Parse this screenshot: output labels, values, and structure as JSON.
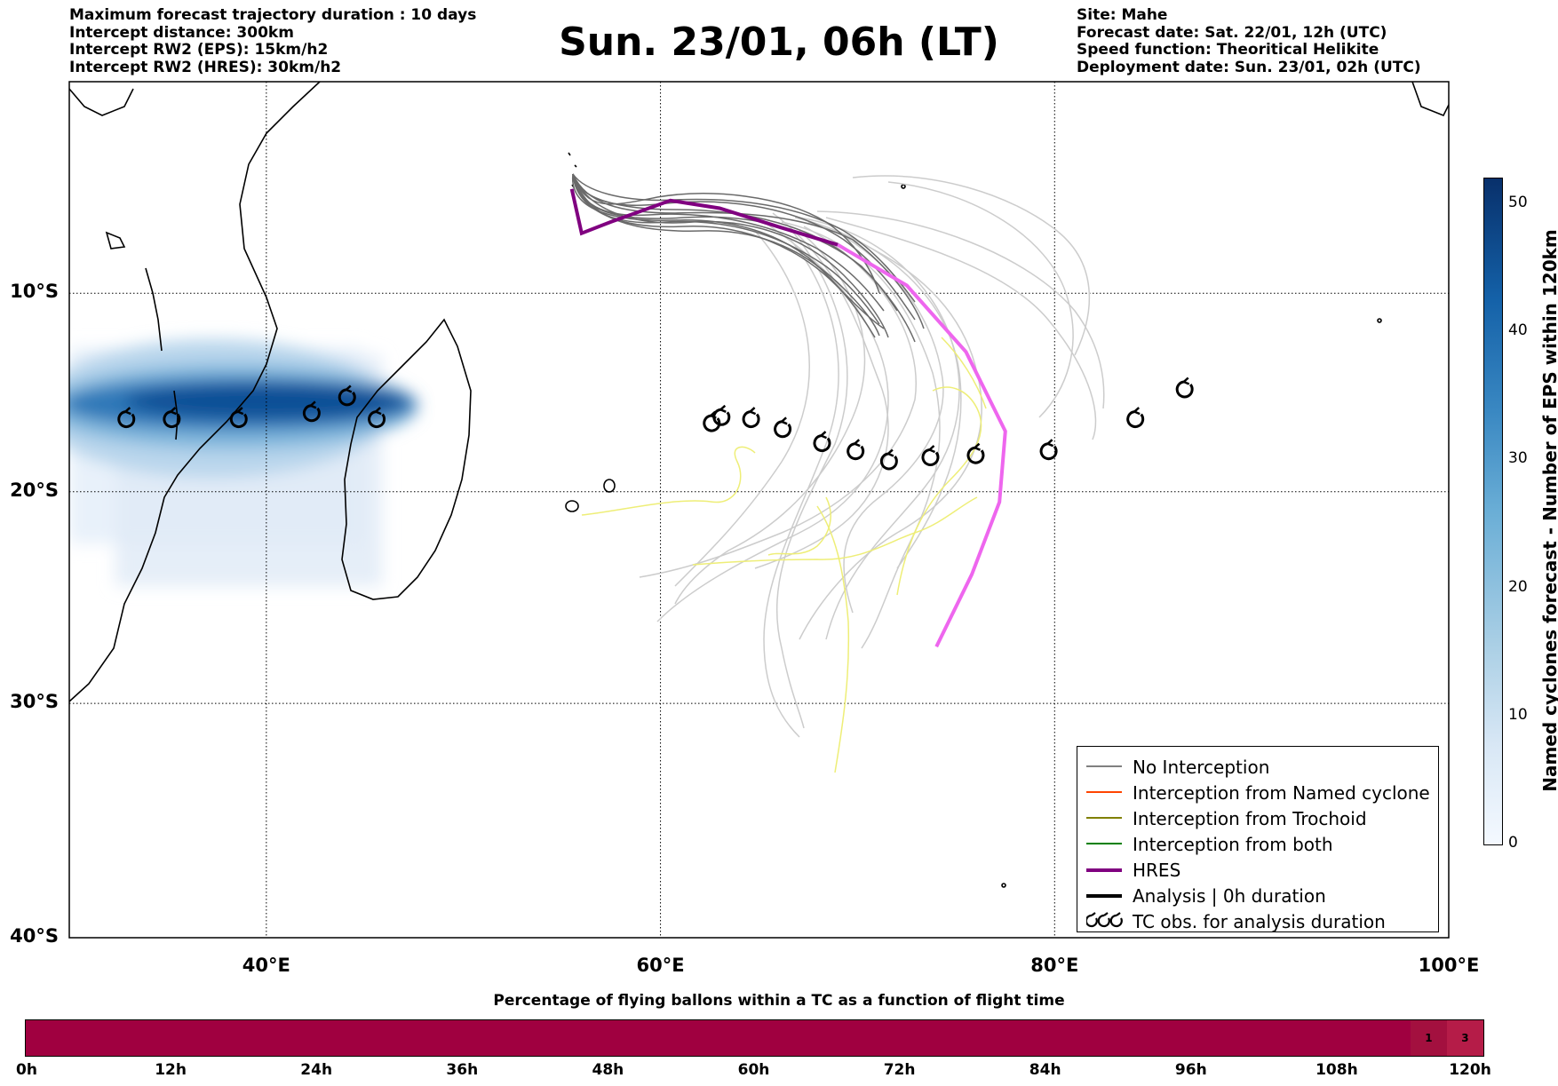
{
  "header_left": [
    "Maximum forecast trajectory duration : 10 days",
    "Intercept distance: 300km",
    "Intercept RW2 (EPS):  15km/h2",
    "Intercept RW2 (HRES): 30km/h2"
  ],
  "header_right": [
    "Site: Mahe",
    "Forecast date: Sat. 22/01, 12h (UTC)",
    "Speed function: Theoritical Helikite",
    "Deployment date: Sun. 23/01, 02h (UTC)"
  ],
  "title": "Sun. 23/01, 06h (LT)",
  "map": {
    "lon_labels": [
      "40°E",
      "60°E",
      "80°E",
      "100°E"
    ],
    "lat_labels": [
      "10°S",
      "20°S",
      "30°S",
      "40°S"
    ],
    "lon_values": [
      40,
      60,
      80,
      100
    ],
    "lat_values": [
      -10,
      -20,
      -30,
      -40
    ],
    "extent": {
      "lon_min": 30,
      "lon_max": 100,
      "lat_min": -40,
      "lat_max": 1
    },
    "gridlines": true
  },
  "legend": {
    "items": [
      {
        "label": "No Interception",
        "color": "#808080",
        "style": "thin"
      },
      {
        "label": "Interception from Named cyclone",
        "color": "#ff4500",
        "style": "thin"
      },
      {
        "label": "Interception from Trochoid",
        "color": "#808000",
        "style": "thin"
      },
      {
        "label": "Interception from both",
        "color": "#008000",
        "style": "thin"
      },
      {
        "label": "HRES",
        "color": "#800080",
        "style": "thick"
      },
      {
        "label": "Analysis | 0h duration",
        "color": "#000000",
        "style": "thick"
      },
      {
        "label": "TC obs. for analysis duration",
        "color": "#000000",
        "style": "symbol"
      }
    ],
    "position": "bottom-right"
  },
  "colorbar": {
    "label": "Named cyclones forecast - Number of EPS within 120km",
    "ticks": [
      "0",
      "10",
      "20",
      "30",
      "40",
      "50"
    ],
    "tick_values": [
      0,
      10,
      20,
      30,
      40,
      50
    ],
    "max": 52
  },
  "percentage_bar": {
    "title": "Percentage of flying ballons within a TC as a function of flight time",
    "tick_labels": [
      "0h",
      "12h",
      "24h",
      "36h",
      "48h",
      "60h",
      "72h",
      "84h",
      "96h",
      "108h",
      "120h"
    ],
    "tick_values": [
      0,
      12,
      24,
      36,
      48,
      60,
      72,
      84,
      96,
      108,
      120
    ],
    "cells": [
      {
        "start_h": 0,
        "end_h": 114,
        "value": "",
        "color": "#a00040"
      },
      {
        "start_h": 114,
        "end_h": 117,
        "value": "1",
        "color": "#a3103f"
      },
      {
        "start_h": 117,
        "end_h": 120,
        "value": "3",
        "color": "#b51c48"
      }
    ]
  },
  "colors": {
    "hres": "#800080",
    "hres_late": "#ee66ee",
    "no_interception": "#6a6a6a",
    "no_interception_late": "#cccccc",
    "trochoid_late": "#eeee77",
    "density_dark": "#08306b",
    "percentage_fill": "#a00040"
  },
  "tc_observations": [
    {
      "lon": 32.9,
      "lat": -16.4
    },
    {
      "lon": 35.2,
      "lat": -16.4
    },
    {
      "lon": 38.6,
      "lat": -16.4
    },
    {
      "lon": 42.3,
      "lat": -16.1
    },
    {
      "lon": 44.1,
      "lat": -15.3
    },
    {
      "lon": 45.6,
      "lat": -16.4
    },
    {
      "lon": 62.6,
      "lat": -16.6
    },
    {
      "lon": 63.1,
      "lat": -16.3
    },
    {
      "lon": 64.6,
      "lat": -16.4
    },
    {
      "lon": 66.2,
      "lat": -16.9
    },
    {
      "lon": 68.2,
      "lat": -17.6
    },
    {
      "lon": 69.9,
      "lat": -18.0
    },
    {
      "lon": 71.6,
      "lat": -18.5
    },
    {
      "lon": 73.7,
      "lat": -18.3
    },
    {
      "lon": 76.0,
      "lat": -18.2
    },
    {
      "lon": 79.7,
      "lat": -18.0
    },
    {
      "lon": 84.1,
      "lat": -16.4
    },
    {
      "lon": 86.6,
      "lat": -14.9
    }
  ],
  "hres_track": [
    {
      "lon": 55.5,
      "lat": -4.6
    },
    {
      "lon": 56.0,
      "lat": -6.9
    },
    {
      "lon": 57.5,
      "lat": -6.3
    },
    {
      "lon": 60.5,
      "lat": -5.2
    },
    {
      "lon": 63.0,
      "lat": -5.6
    },
    {
      "lon": 66.1,
      "lat": -6.6
    },
    {
      "lon": 69.0,
      "lat": -7.5
    },
    {
      "lon": 72.5,
      "lat": -9.6
    },
    {
      "lon": 75.5,
      "lat": -13.0
    },
    {
      "lon": 77.5,
      "lat": -17.0
    },
    {
      "lon": 77.2,
      "lat": -20.5
    },
    {
      "lon": 75.8,
      "lat": -24.0
    },
    {
      "lon": 74.0,
      "lat": -27.4
    }
  ]
}
